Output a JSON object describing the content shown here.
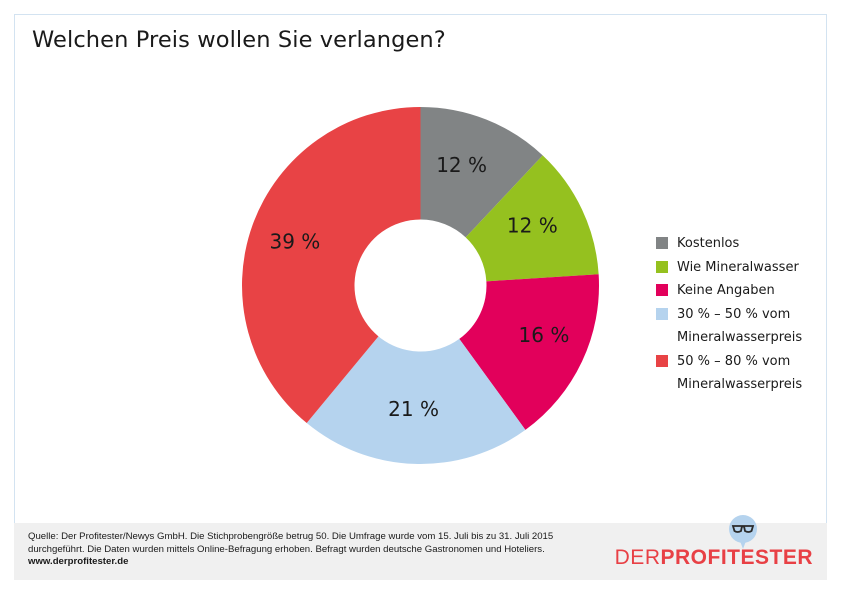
{
  "title": "Welchen Preis wollen Sie verlangen?",
  "chart_data": {
    "type": "pie",
    "variant": "donut",
    "title": "Welchen Preis wollen Sie verlangen?",
    "start": "12 o'clock",
    "direction": "clockwise",
    "unit": "%",
    "slices": [
      {
        "label": "Kostenlos",
        "value": 12,
        "display": "12 %",
        "color": "#818485"
      },
      {
        "label": "Wie Mineralwasser",
        "value": 12,
        "display": "12 %",
        "color": "#95c11f"
      },
      {
        "label": "Keine Angaben",
        "value": 16,
        "display": "16 %",
        "color": "#e2005b"
      },
      {
        "label": "30 % – 50 % vom Mineralwasserpreis",
        "value": 21,
        "display": "21 %",
        "color": "#b5d3ee"
      },
      {
        "label": "50 % – 80 % vom Mineralwasserpreis",
        "value": 39,
        "display": "39 %",
        "color": "#e84345"
      }
    ],
    "legend_position": "right"
  },
  "legend": [
    {
      "line1": "Kostenlos",
      "line2": ""
    },
    {
      "line1": "Wie Mineralwasser",
      "line2": ""
    },
    {
      "line1": "Keine Angaben",
      "line2": ""
    },
    {
      "line1": "30 % – 50 % vom",
      "line2": "Mineralwasserpreis"
    },
    {
      "line1": "50 % – 80 % vom",
      "line2": "Mineralwasserpreis"
    }
  ],
  "footer": {
    "line1": "Quelle: Der Profitester/Newys GmbH. Die Stichprobengröße betrug 50. Die Umfrage wurde vom 15. Juli bis zu 31. Juli 2015",
    "line2": "durchgeführt. Die Daten wurden mittels Online-Befragung erhoben. Befragt wurden deutsche Gastronomen und Hoteliers.",
    "url": "www.derprofitester.de"
  },
  "logo": {
    "light": "DER",
    "bold": "PROFITESTER",
    "icon": "glasses-speech-bubble-icon",
    "bubble_color": "#b5d3ee",
    "text_color": "#e84045"
  }
}
